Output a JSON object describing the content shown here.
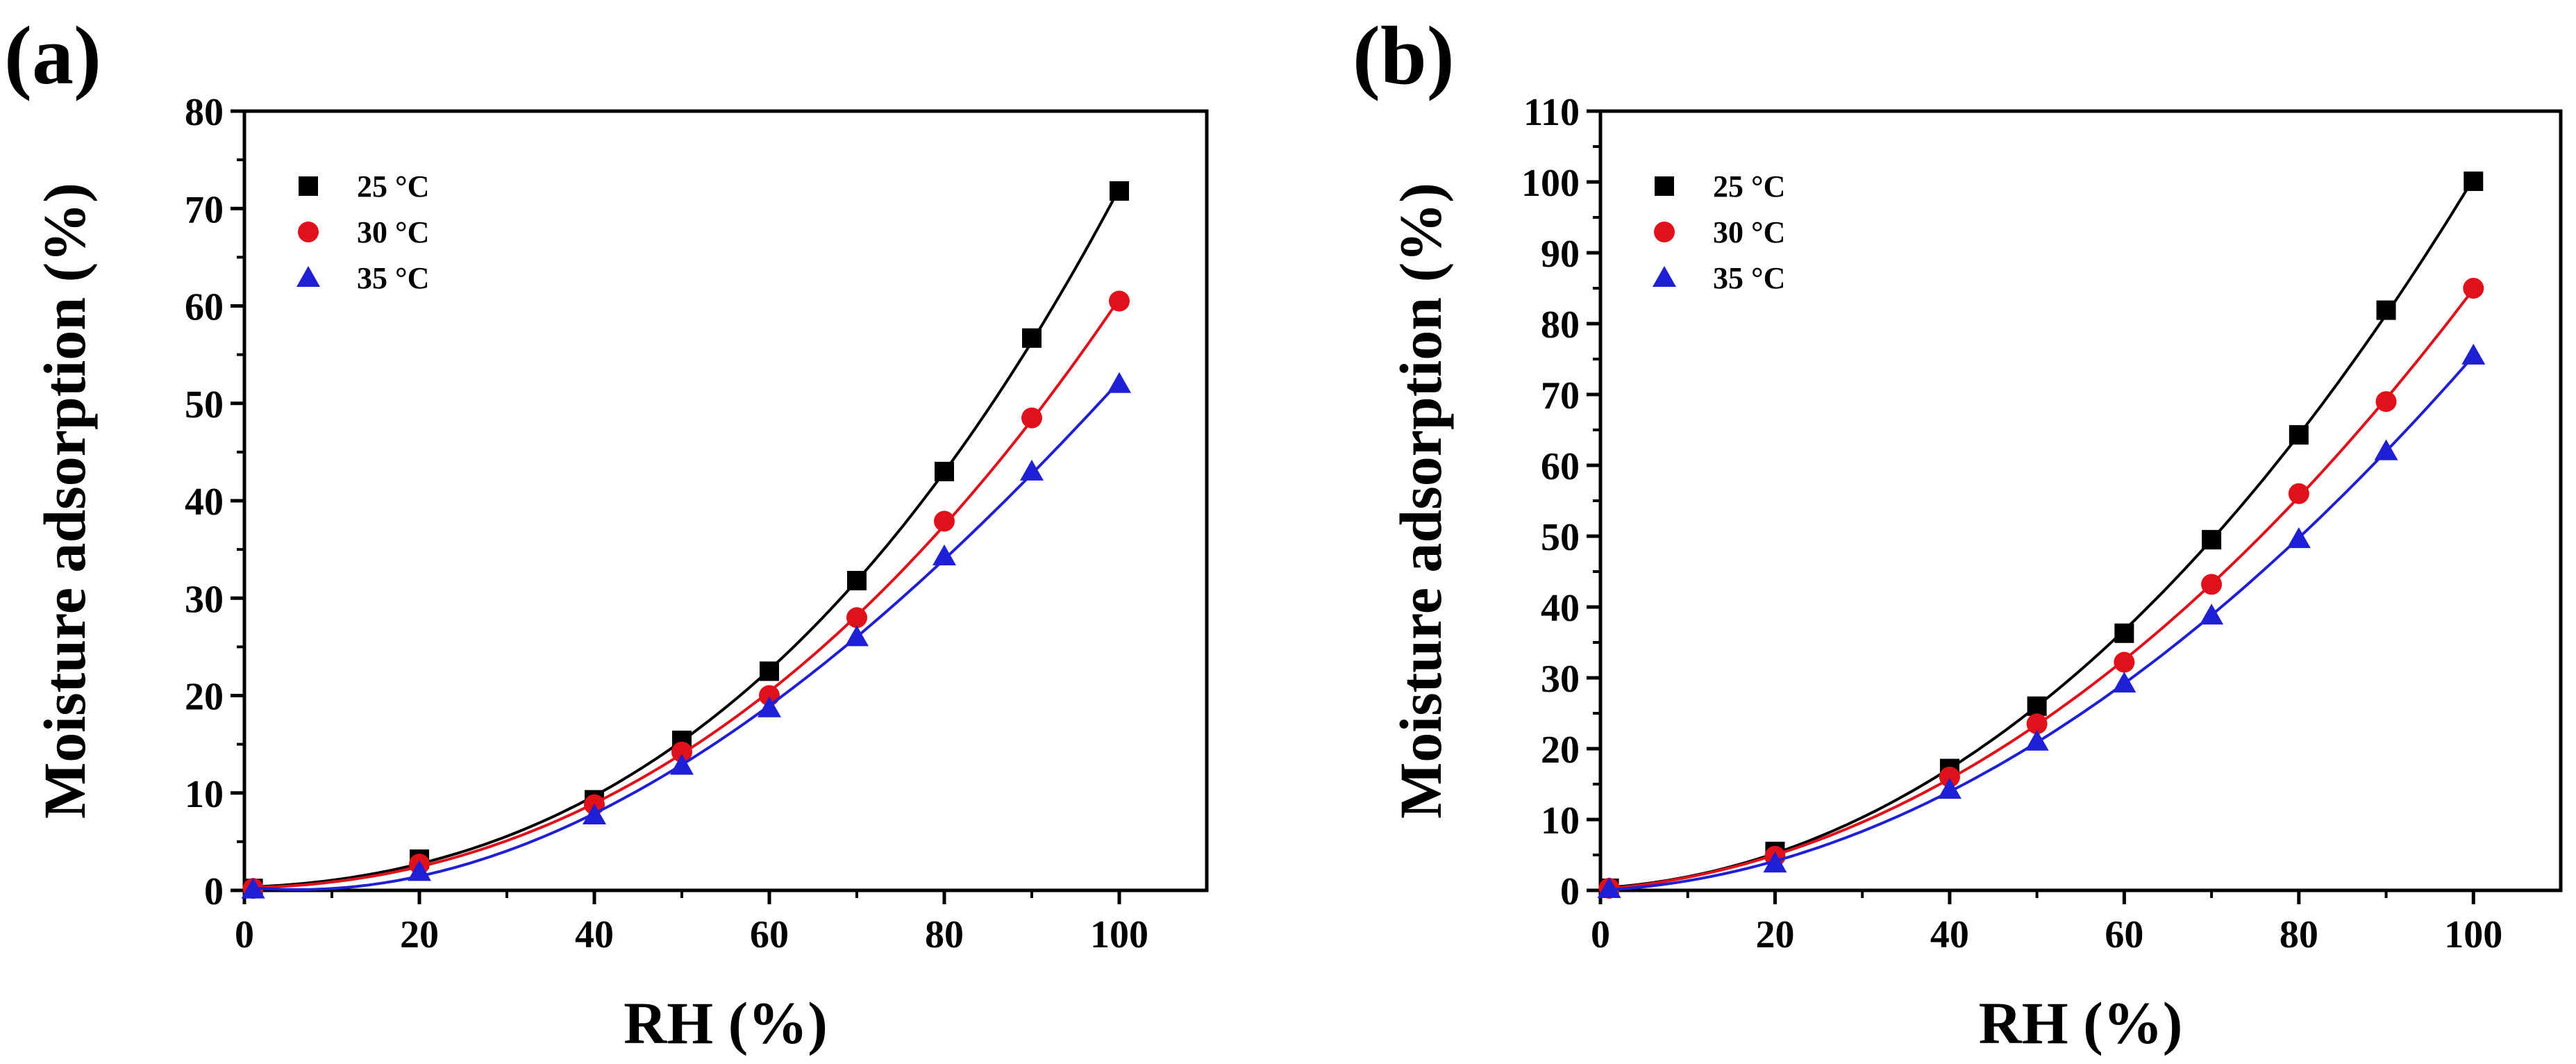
{
  "chart_data": [
    {
      "panel_label": "(a)",
      "type": "scatter",
      "xlabel": "RH (%)",
      "ylabel": "Moisture adsorption (%)",
      "xlim": [
        0,
        110
      ],
      "ylim": [
        0,
        80
      ],
      "xticks": [
        0,
        20,
        40,
        60,
        80,
        100
      ],
      "yticks": [
        0,
        10,
        20,
        30,
        40,
        50,
        60,
        70,
        80
      ],
      "x": [
        1,
        20,
        40,
        50,
        60,
        70,
        80,
        90,
        100
      ],
      "legend_position": "top-left",
      "series": [
        {
          "name": "25 °C",
          "marker": "square",
          "color": "#000000",
          "values": [
            0.2,
            3.2,
            9.3,
            15.4,
            22.5,
            31.8,
            43.0,
            56.7,
            71.8
          ]
        },
        {
          "name": "30 °C",
          "marker": "circle",
          "color": "#e0111a",
          "values": [
            0.2,
            2.7,
            8.8,
            14.2,
            20.0,
            28.0,
            37.9,
            48.5,
            60.5
          ]
        },
        {
          "name": "35 °C",
          "marker": "triangle",
          "color": "#1f1fd6",
          "values": [
            0.1,
            1.9,
            7.7,
            12.8,
            18.7,
            26.0,
            34.3,
            43.0,
            52.0
          ]
        }
      ]
    },
    {
      "panel_label": "(b)",
      "type": "scatter",
      "xlabel": "RH (%)",
      "ylabel": "Moisture adsorption (%)",
      "xlim": [
        0,
        110
      ],
      "ylim": [
        0,
        110
      ],
      "xticks": [
        0,
        20,
        40,
        60,
        80,
        100
      ],
      "yticks": [
        0,
        10,
        20,
        30,
        40,
        50,
        60,
        70,
        80,
        90,
        100,
        110
      ],
      "x": [
        1,
        20,
        40,
        50,
        60,
        70,
        80,
        90,
        100
      ],
      "legend_position": "top-left",
      "series": [
        {
          "name": "25 °C",
          "marker": "square",
          "color": "#000000",
          "values": [
            0.3,
            5.5,
            17.2,
            26.0,
            36.3,
            49.5,
            64.3,
            81.9,
            100.1
          ]
        },
        {
          "name": "30 °C",
          "marker": "circle",
          "color": "#e0111a",
          "values": [
            0.3,
            4.8,
            16.0,
            23.5,
            32.2,
            43.2,
            56.0,
            69.0,
            85.0
          ]
        },
        {
          "name": "35 °C",
          "marker": "triangle",
          "color": "#1f1fd6",
          "values": [
            0.2,
            3.8,
            14.2,
            21.0,
            29.2,
            38.8,
            49.6,
            62.0,
            75.5
          ]
        }
      ]
    }
  ]
}
